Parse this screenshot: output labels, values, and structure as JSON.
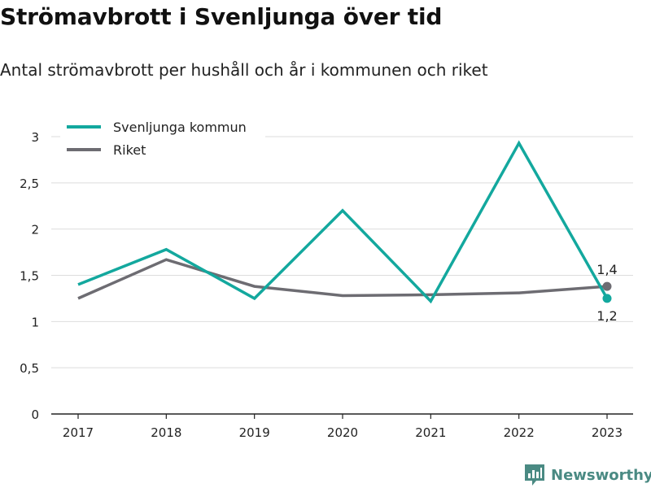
{
  "title": "Strömavbrott i Svenljunga över tid",
  "subtitle": "Antal strömavbrott per hushåll och år i kommunen och riket",
  "brand": {
    "name": "Newsworthy",
    "icon": "newsworthy-logo-icon"
  },
  "colors": {
    "svenljunga": "#13a89e",
    "riket": "#6d6c72",
    "grid": "#dddddd",
    "axis": "#222222",
    "brand": "#4a8a83"
  },
  "chart_data": {
    "type": "line",
    "x": [
      "2017",
      "2018",
      "2019",
      "2020",
      "2021",
      "2022",
      "2023"
    ],
    "ylim": [
      0,
      3
    ],
    "yticks": [
      {
        "value": 0,
        "label": "0"
      },
      {
        "value": 0.5,
        "label": "0,5"
      },
      {
        "value": 1,
        "label": "1"
      },
      {
        "value": 1.5,
        "label": "1,5"
      },
      {
        "value": 2,
        "label": "2"
      },
      {
        "value": 2.5,
        "label": "2,5"
      },
      {
        "value": 3,
        "label": "3"
      }
    ],
    "grid": true,
    "legend": "top-left",
    "series": [
      {
        "key": "svenljunga",
        "name": "Svenljunga kommun",
        "values": [
          1.4,
          1.78,
          1.25,
          2.2,
          1.22,
          2.93,
          1.25
        ],
        "end_label": "1,2"
      },
      {
        "key": "riket",
        "name": "Riket",
        "values": [
          1.25,
          1.67,
          1.38,
          1.28,
          1.29,
          1.31,
          1.38
        ],
        "end_label": "1,4"
      }
    ]
  }
}
